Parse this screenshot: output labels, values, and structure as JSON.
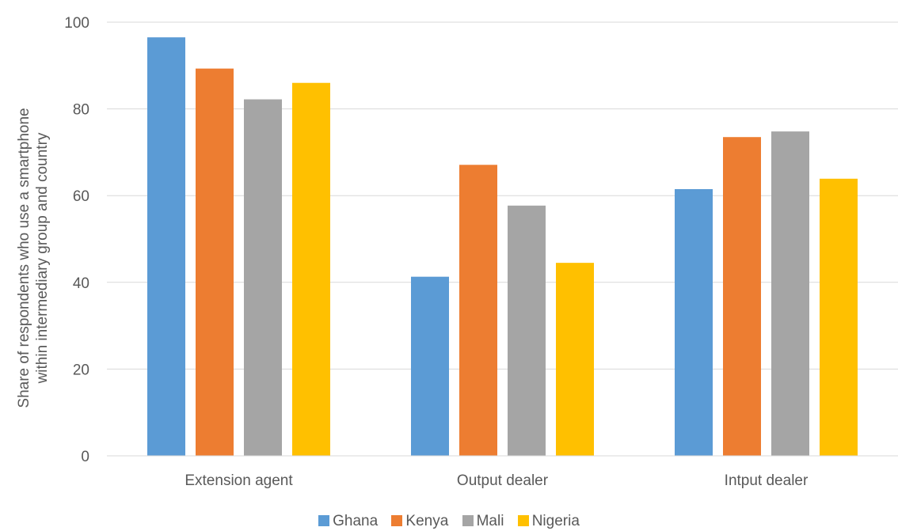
{
  "chart_data": {
    "type": "bar",
    "categories": [
      "Extension agent",
      "Output dealer",
      "Intput dealer"
    ],
    "series": [
      {
        "name": "Ghana",
        "color": "#5B9BD5",
        "values": [
          96.5,
          41.3,
          61.5
        ]
      },
      {
        "name": "Kenya",
        "color": "#ED7D31",
        "values": [
          89.3,
          67.1,
          73.5
        ]
      },
      {
        "name": "Mali",
        "color": "#A5A5A5",
        "values": [
          82.2,
          57.7,
          74.8
        ]
      },
      {
        "name": "Nigeria",
        "color": "#FFC000",
        "values": [
          86.0,
          44.5,
          63.9
        ]
      }
    ],
    "yticks": [
      "0",
      "20",
      "40",
      "60",
      "80",
      "100"
    ],
    "ylim": [
      0,
      100
    ],
    "ylabel_lines": [
      "Share of respondents who use a smartphone",
      "within intermediary group and country"
    ],
    "xlabel": "",
    "grid": true,
    "legend_position": "bottom"
  }
}
